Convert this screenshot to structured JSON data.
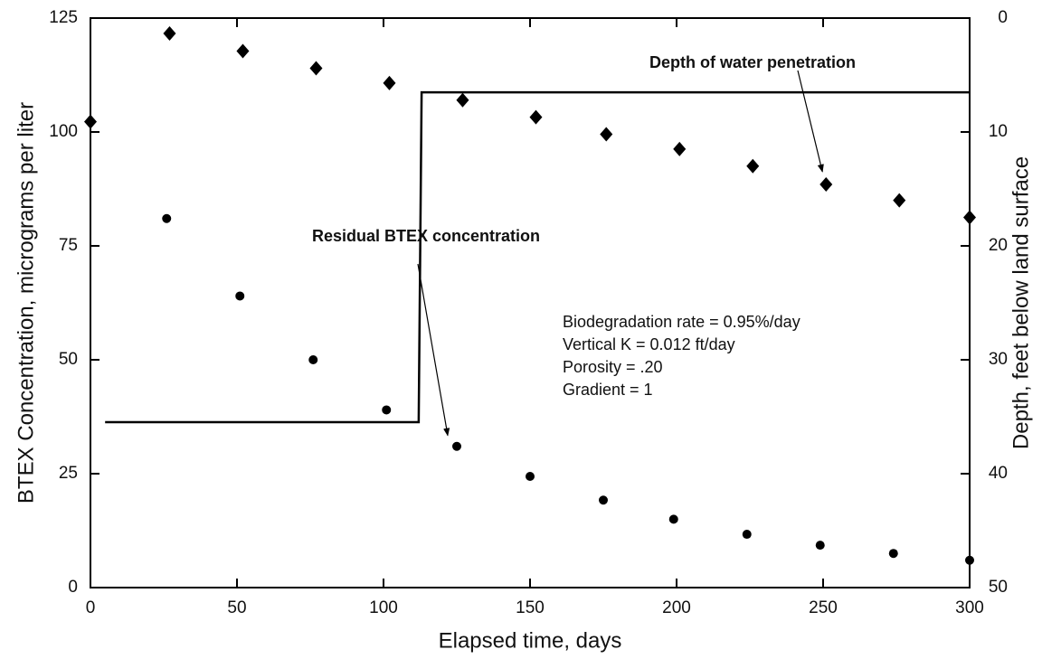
{
  "chart_data": {
    "type": "scatter",
    "x_label": "Elapsed time, days",
    "y_label": "BTEX Concentration, micrograms per liter",
    "y2_label": "Depth, feet below land surface",
    "xlim": [
      0,
      300
    ],
    "xticks": [
      0,
      50,
      100,
      150,
      200,
      250,
      300
    ],
    "ylim": [
      0,
      125
    ],
    "yticks": [
      0,
      25,
      50,
      75,
      100,
      125
    ],
    "y2lim": [
      50,
      0
    ],
    "y2ticks": [
      0,
      10,
      20,
      30,
      40,
      50
    ],
    "series": [
      {
        "name": "Residual BTEX concentration",
        "marker": "circle",
        "color": "#000000",
        "axis": "y",
        "x": [
          26,
          51,
          76,
          101,
          125,
          150,
          175,
          199,
          224,
          249,
          274,
          300
        ],
        "values": [
          81,
          64,
          50,
          39,
          31,
          24.4,
          19.2,
          15,
          11.7,
          9.3,
          7.5,
          6
        ]
      },
      {
        "name": "Depth of water penetration",
        "marker": "diamond",
        "color": "#000000",
        "axis": "y2",
        "x": [
          0,
          27,
          52,
          77,
          102,
          127,
          152,
          176,
          201,
          226,
          251,
          276,
          300
        ],
        "values": [
          9.1,
          1.35,
          2.9,
          4.4,
          5.7,
          7.2,
          8.7,
          10.2,
          11.5,
          13.0,
          14.6,
          16.0,
          17.5
        ]
      },
      {
        "marker": "line",
        "color": "#000000",
        "axis": "y",
        "x": [
          5,
          112,
          113,
          300
        ],
        "values": [
          36.3,
          36.3,
          108.7,
          108.7
        ]
      }
    ],
    "annotations": [
      "Biodegradation rate = 0.95%/day",
      "Vertical K = 0.012 ft/day",
      "Porosity = .20",
      "Gradient = 1"
    ]
  }
}
